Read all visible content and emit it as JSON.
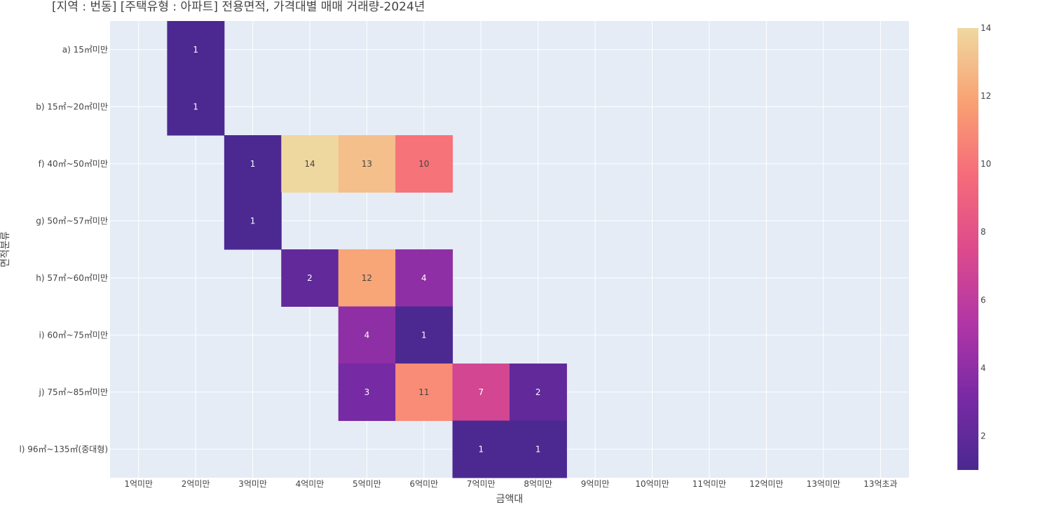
{
  "chart_data": {
    "type": "heatmap",
    "title": "[지역 : 번동] [주택유형 : 아파트] 전용면적, 가격대별 매매 거래량-2024년",
    "xlabel": "금액대",
    "ylabel": "면적분류",
    "x_categories": [
      "1억미만",
      "2억미만",
      "3억미만",
      "4억미만",
      "5억미만",
      "6억미만",
      "7억미만",
      "8억미만",
      "9억미만",
      "10억미만",
      "11억미만",
      "12억미만",
      "13억미만",
      "13억초과"
    ],
    "y_categories": [
      "a) 15㎡미만",
      "b) 15㎡~20㎡미만",
      "f) 40㎡~50㎡미만",
      "g) 50㎡~57㎡미만",
      "h) 57㎡~60㎡미만",
      "i) 60㎡~75㎡미만",
      "j) 75㎡~85㎡미만",
      "l) 96㎡~135㎡(중대형)"
    ],
    "values": [
      [
        null,
        1,
        null,
        null,
        null,
        null,
        null,
        null,
        null,
        null,
        null,
        null,
        null,
        null
      ],
      [
        null,
        1,
        null,
        null,
        null,
        null,
        null,
        null,
        null,
        null,
        null,
        null,
        null,
        null
      ],
      [
        null,
        null,
        1,
        14,
        13,
        10,
        null,
        null,
        null,
        null,
        null,
        null,
        null,
        null
      ],
      [
        null,
        null,
        1,
        null,
        null,
        null,
        null,
        null,
        null,
        null,
        null,
        null,
        null,
        null
      ],
      [
        null,
        null,
        null,
        2,
        12,
        4,
        null,
        null,
        null,
        null,
        null,
        null,
        null,
        null
      ],
      [
        null,
        null,
        null,
        null,
        4,
        1,
        null,
        null,
        null,
        null,
        null,
        null,
        null,
        null
      ],
      [
        null,
        null,
        null,
        null,
        3,
        11,
        7,
        2,
        null,
        null,
        null,
        null,
        null,
        null
      ],
      [
        null,
        null,
        null,
        null,
        null,
        null,
        1,
        1,
        null,
        null,
        null,
        null,
        null,
        null
      ]
    ],
    "colorscale": "plasma",
    "zmin": 1,
    "zmax": 14,
    "colorbar_ticks": [
      2,
      4,
      6,
      8,
      10,
      12,
      14
    ],
    "colors": {
      "plot_background": "#e5ecf6",
      "gridline": "#ffffff"
    }
  }
}
